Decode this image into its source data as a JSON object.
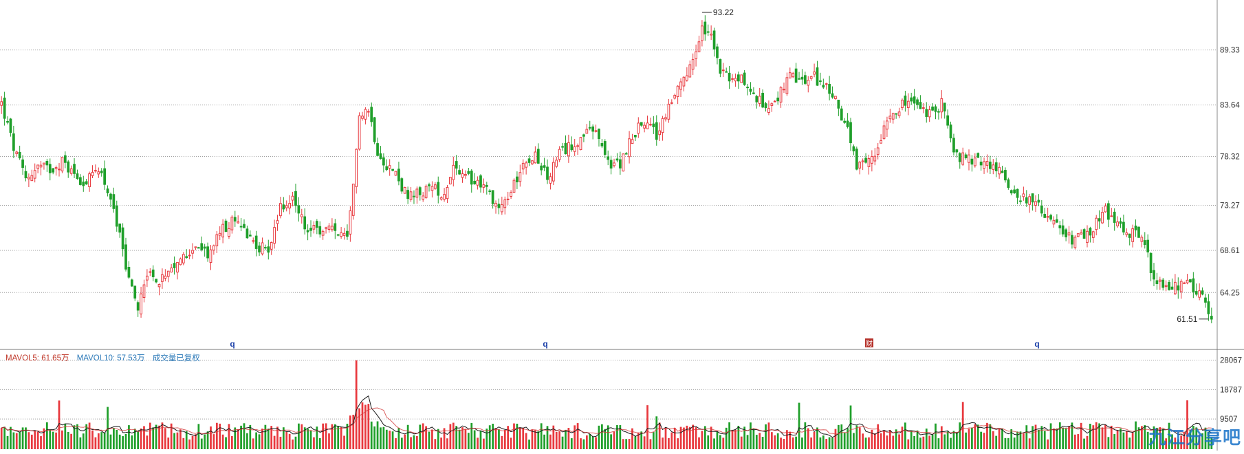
{
  "chart_data": {
    "type": "candlestick",
    "price_axis": {
      "ticks": [
        "89.33",
        "83.64",
        "78.32",
        "73.27",
        "68.61",
        "64.25"
      ],
      "tick_values": [
        89.33,
        83.64,
        78.32,
        73.27,
        68.61,
        64.25
      ],
      "ylim": [
        60.5,
        94.5
      ]
    },
    "volume_axis": {
      "ticks": [
        "28067",
        "18787",
        "9507"
      ],
      "tick_values": [
        28067,
        18787,
        9507
      ],
      "ylim": [
        0,
        31000
      ]
    },
    "annotations": {
      "high_label": "93.22",
      "high_value": 93.22,
      "low_label": "61.51",
      "low_value": 61.51
    },
    "event_markers": [
      "q",
      "q",
      "财",
      "q"
    ],
    "legend": {
      "mavol5": "MAVOL5: 61.65万",
      "mavol10": "MAVOL10: 57.53万",
      "note": "成交量已复权"
    },
    "grid": "dotted horizontal",
    "anchors": [
      [
        0,
        83.8
      ],
      [
        4,
        79.2
      ],
      [
        8,
        76.0
      ],
      [
        12,
        77.3
      ],
      [
        16,
        77.0
      ],
      [
        20,
        77.8
      ],
      [
        24,
        76.5
      ],
      [
        28,
        75.5
      ],
      [
        32,
        77.3
      ],
      [
        36,
        74.0
      ],
      [
        39,
        70.0
      ],
      [
        42,
        65.5
      ],
      [
        45,
        62.8
      ],
      [
        48,
        66.5
      ],
      [
        52,
        65.3
      ],
      [
        56,
        66.2
      ],
      [
        60,
        68.0
      ],
      [
        64,
        69.3
      ],
      [
        68,
        68.0
      ],
      [
        72,
        70.5
      ],
      [
        76,
        71.5
      ],
      [
        80,
        71.0
      ],
      [
        84,
        69.0
      ],
      [
        88,
        68.8
      ],
      [
        92,
        73.0
      ],
      [
        96,
        74.0
      ],
      [
        100,
        71.0
      ],
      [
        104,
        70.5
      ],
      [
        108,
        70.8
      ],
      [
        111,
        70.5
      ],
      [
        114,
        69.5
      ],
      [
        116,
        75.0
      ],
      [
        118,
        83.0
      ],
      [
        121,
        83.2
      ],
      [
        124,
        79.0
      ],
      [
        127,
        77.5
      ],
      [
        130,
        76.5
      ],
      [
        134,
        74.0
      ],
      [
        138,
        74.5
      ],
      [
        142,
        75.0
      ],
      [
        146,
        74.5
      ],
      [
        149,
        77.5
      ],
      [
        152,
        76.0
      ],
      [
        156,
        76.0
      ],
      [
        160,
        75.0
      ],
      [
        164,
        73.0
      ],
      [
        168,
        74.5
      ],
      [
        172,
        78.0
      ],
      [
        176,
        78.5
      ],
      [
        180,
        76.0
      ],
      [
        184,
        78.5
      ],
      [
        188,
        79.5
      ],
      [
        192,
        80.5
      ],
      [
        196,
        81.0
      ],
      [
        200,
        77.5
      ],
      [
        204,
        77.5
      ],
      [
        208,
        80.5
      ],
      [
        212,
        82.0
      ],
      [
        216,
        80.5
      ],
      [
        220,
        83.5
      ],
      [
        224,
        85.5
      ],
      [
        228,
        88.0
      ],
      [
        231,
        91.5
      ],
      [
        234,
        90.5
      ],
      [
        236,
        88.0
      ],
      [
        240,
        86.0
      ],
      [
        244,
        86.5
      ],
      [
        248,
        84.5
      ],
      [
        252,
        83.5
      ],
      [
        256,
        84.5
      ],
      [
        260,
        86.5
      ],
      [
        264,
        86.0
      ],
      [
        268,
        86.5
      ],
      [
        272,
        85.5
      ],
      [
        276,
        83.5
      ],
      [
        279,
        81.0
      ],
      [
        282,
        77.0
      ],
      [
        285,
        77.5
      ],
      [
        288,
        78.5
      ],
      [
        292,
        82.5
      ],
      [
        296,
        83.5
      ],
      [
        300,
        84.0
      ],
      [
        304,
        83.0
      ],
      [
        308,
        82.5
      ],
      [
        310,
        84.5
      ],
      [
        314,
        78.5
      ],
      [
        318,
        78.0
      ],
      [
        322,
        77.8
      ],
      [
        326,
        77.5
      ],
      [
        330,
        76.5
      ],
      [
        334,
        74.5
      ],
      [
        338,
        74.0
      ],
      [
        342,
        73.0
      ],
      [
        346,
        72.0
      ],
      [
        350,
        70.0
      ],
      [
        354,
        69.8
      ],
      [
        358,
        70.0
      ],
      [
        362,
        72.0
      ],
      [
        364,
        72.8
      ],
      [
        368,
        71.0
      ],
      [
        372,
        70.5
      ],
      [
        376,
        70.3
      ],
      [
        380,
        65.5
      ],
      [
        384,
        64.5
      ],
      [
        388,
        65.0
      ],
      [
        392,
        65.0
      ],
      [
        396,
        63.5
      ],
      [
        398,
        61.8
      ]
    ]
  }
}
